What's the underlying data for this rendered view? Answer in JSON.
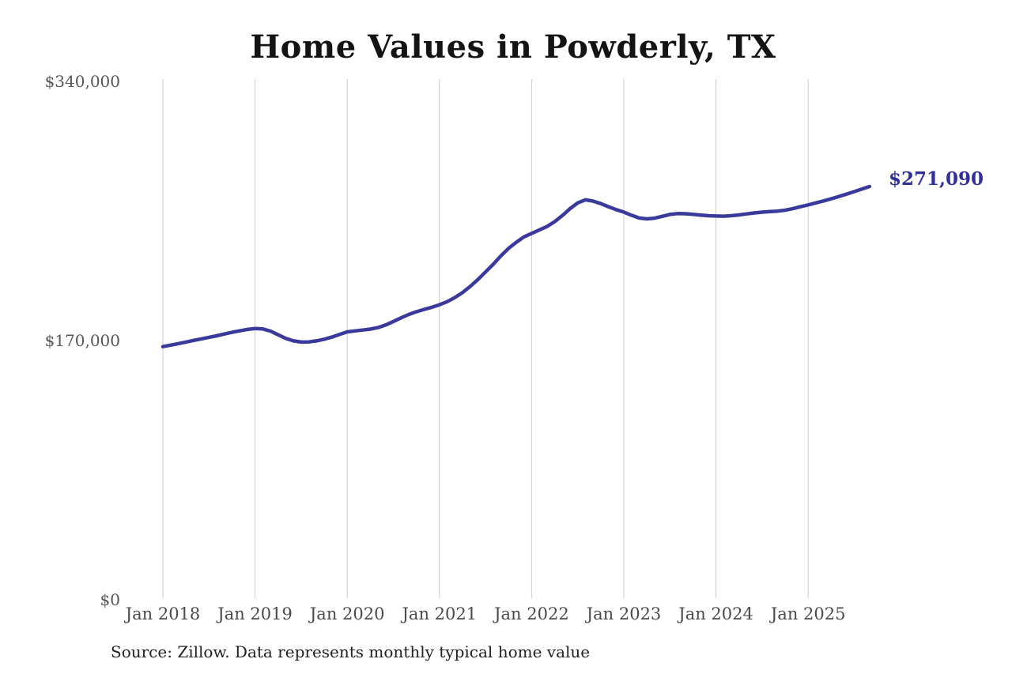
{
  "page": {
    "title": "Home Values in Powderly, TX",
    "source_note": "Source: Zillow. Data represents monthly typical home value"
  },
  "chart_data": {
    "type": "line",
    "title": "Home Values in Powderly, TX",
    "xlabel": "",
    "ylabel": "",
    "ylim": [
      0,
      340000
    ],
    "grid": "vertical-only",
    "legend": "none",
    "line_color": "#3a3a9c",
    "gridline_color": "#cbcbcb",
    "end_label": "$271,090",
    "end_value": 271090,
    "frequency": "monthly",
    "yticks": [
      {
        "value": 0,
        "label": "$0"
      },
      {
        "value": 170000,
        "label": "$170,000"
      },
      {
        "value": 340000,
        "label": "$340,000"
      }
    ],
    "xticks": [
      {
        "month": "2018-01",
        "label": "Jan 2018"
      },
      {
        "month": "2019-01",
        "label": "Jan 2019"
      },
      {
        "month": "2020-01",
        "label": "Jan 2020"
      },
      {
        "month": "2021-01",
        "label": "Jan 2021"
      },
      {
        "month": "2022-01",
        "label": "Jan 2022"
      },
      {
        "month": "2023-01",
        "label": "Jan 2023"
      },
      {
        "month": "2024-01",
        "label": "Jan 2024"
      },
      {
        "month": "2025-01",
        "label": "Jan 2025"
      }
    ],
    "months": [
      "2018-01",
      "2018-02",
      "2018-03",
      "2018-04",
      "2018-05",
      "2018-06",
      "2018-07",
      "2018-08",
      "2018-09",
      "2018-10",
      "2018-11",
      "2018-12",
      "2019-01",
      "2019-02",
      "2019-03",
      "2019-04",
      "2019-05",
      "2019-06",
      "2019-07",
      "2019-08",
      "2019-09",
      "2019-10",
      "2019-11",
      "2019-12",
      "2020-01",
      "2020-02",
      "2020-03",
      "2020-04",
      "2020-05",
      "2020-06",
      "2020-07",
      "2020-08",
      "2020-09",
      "2020-10",
      "2020-11",
      "2020-12",
      "2021-01",
      "2021-02",
      "2021-03",
      "2021-04",
      "2021-05",
      "2021-06",
      "2021-07",
      "2021-08",
      "2021-09",
      "2021-10",
      "2021-11",
      "2021-12",
      "2022-01",
      "2022-02",
      "2022-03",
      "2022-04",
      "2022-05",
      "2022-06",
      "2022-07",
      "2022-08",
      "2022-09",
      "2022-10",
      "2022-11",
      "2022-12",
      "2023-01",
      "2023-02",
      "2023-03",
      "2023-04",
      "2023-05",
      "2023-06",
      "2023-07",
      "2023-08",
      "2023-09",
      "2023-10",
      "2023-11",
      "2023-12",
      "2024-01",
      "2024-02",
      "2024-03",
      "2024-04",
      "2024-05",
      "2024-06",
      "2024-07",
      "2024-08",
      "2024-09",
      "2024-10",
      "2024-11",
      "2024-12",
      "2025-01",
      "2025-02",
      "2025-03",
      "2025-04",
      "2025-05",
      "2025-06",
      "2025-07",
      "2025-08",
      "2025-09"
    ],
    "values": [
      166000,
      167000,
      168000,
      169000,
      170100,
      171100,
      172100,
      173100,
      174300,
      175400,
      176400,
      177300,
      177900,
      177600,
      176200,
      173800,
      171400,
      169800,
      169000,
      169100,
      169800,
      170900,
      172300,
      174000,
      175700,
      176300,
      176900,
      177500,
      178500,
      180200,
      182500,
      184900,
      187100,
      188900,
      190400,
      191800,
      193500,
      195500,
      198200,
      201500,
      205500,
      210000,
      215000,
      220000,
      225500,
      230500,
      234500,
      238000,
      240300,
      242500,
      244800,
      248000,
      252000,
      256500,
      260300,
      262300,
      261500,
      259800,
      257800,
      255900,
      254300,
      252200,
      250400,
      249800,
      250300,
      251500,
      252700,
      253300,
      253200,
      252800,
      252300,
      251900,
      251700,
      251600,
      251900,
      252400,
      253100,
      253700,
      254200,
      254600,
      254900,
      255500,
      256500,
      257800,
      259000,
      260300,
      261600,
      263000,
      264500,
      266100,
      267700,
      269400,
      271090
    ]
  }
}
